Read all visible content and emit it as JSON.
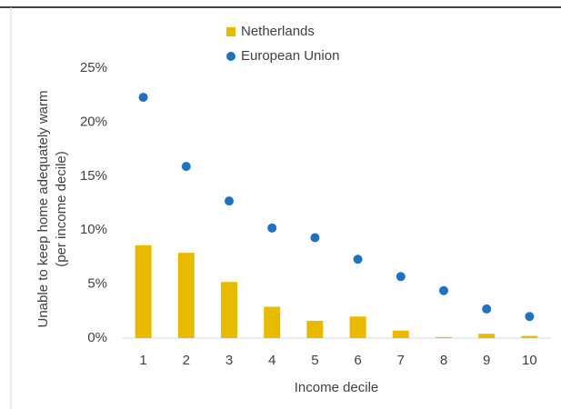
{
  "chart_data": {
    "type": "combo",
    "xlabel": "Income decile",
    "ylabel": [
      "Unable to keep home adequately warm",
      "(per income decile)"
    ],
    "categories": [
      "1",
      "2",
      "3",
      "4",
      "5",
      "6",
      "7",
      "8",
      "9",
      "10"
    ],
    "series": [
      {
        "name": "Netherlands",
        "type": "bar",
        "color": "#e8ba00",
        "values": [
          8.6,
          7.9,
          5.2,
          2.9,
          1.6,
          2.0,
          0.7,
          0.1,
          0.4,
          0.2
        ]
      },
      {
        "name": "European Union",
        "type": "scatter",
        "color": "#1f72c0",
        "values": [
          22.3,
          15.9,
          12.7,
          10.2,
          9.3,
          7.3,
          5.7,
          4.4,
          2.7,
          2.0
        ]
      }
    ],
    "ylim": [
      0,
      25
    ],
    "yticks": [
      {
        "value": 0,
        "label": "0%"
      },
      {
        "value": 5,
        "label": "5%"
      },
      {
        "value": 10,
        "label": "10%"
      },
      {
        "value": 15,
        "label": "15%"
      },
      {
        "value": 20,
        "label": "20%"
      },
      {
        "value": 25,
        "label": "25%"
      }
    ],
    "legend": "top"
  }
}
